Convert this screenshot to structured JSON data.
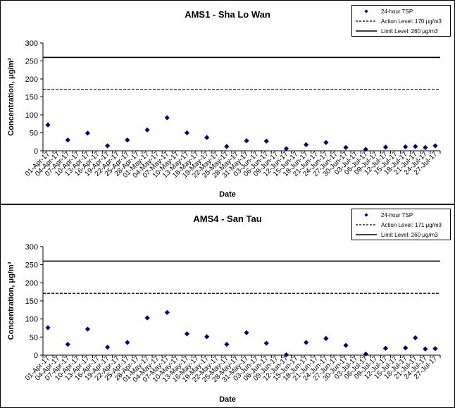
{
  "chart_data": [
    {
      "type": "scatter",
      "title": "AMS1 - Sha Lo Wan",
      "xlabel": "Date",
      "ylabel": "Concentration, μg/m³",
      "ylim": [
        0,
        300
      ],
      "yticks": [
        "0",
        "50",
        "100",
        "150",
        "200",
        "250",
        "300"
      ],
      "x": [
        "01-Apr-17",
        "04-Apr-17",
        "07-Apr-17",
        "10-Apr-17",
        "13-Apr-17",
        "16-Apr-17",
        "19-Apr-17",
        "22-Apr-17",
        "25-Apr-17",
        "28-Apr-17",
        "01-May-17",
        "04-May-17",
        "07-May-17",
        "10-May-17",
        "13-May-17",
        "16-May-17",
        "19-May-17",
        "22-May-17",
        "25-May-17",
        "28-May-17",
        "31-May-17",
        "03-Jun-17",
        "06-Jun-17",
        "09-Jun-17",
        "12-Jun-17",
        "15-Jun-17",
        "18-Jun-17",
        "21-Jun-17",
        "24-Jun-17",
        "27-Jun-17",
        "30-Jun-17",
        "03-Jul-17",
        "06-Jul-17",
        "09-Jul-17",
        "12-Jul-17",
        "15-Jul-17",
        "18-Jul-17",
        "21-Jul-17",
        "24-Jul-17",
        "27-Jul-17"
      ],
      "grid": false,
      "legend_position": "top-right",
      "legend": [
        "24-hour TSP",
        "Action Level: 170 μg/m3",
        "Limit Level: 260 μg/m3"
      ],
      "action_level": 170,
      "limit_level": 260,
      "series": [
        {
          "name": "24-hour TSP",
          "color": "#00007f",
          "points": [
            {
              "x": "01-Apr-17",
              "y": 72
            },
            {
              "x": "07-Apr-17",
              "y": 30
            },
            {
              "x": "13-Apr-17",
              "y": 49
            },
            {
              "x": "19-Apr-17",
              "y": 14
            },
            {
              "x": "25-Apr-17",
              "y": 30
            },
            {
              "x": "01-May-17",
              "y": 58
            },
            {
              "x": "07-May-17",
              "y": 92
            },
            {
              "x": "13-May-17",
              "y": 50
            },
            {
              "x": "19-May-17",
              "y": 37
            },
            {
              "x": "25-May-17",
              "y": 12
            },
            {
              "x": "31-May-17",
              "y": 28
            },
            {
              "x": "06-Jun-17",
              "y": 27
            },
            {
              "x": "12-Jun-17",
              "y": 6
            },
            {
              "x": "18-Jun-17",
              "y": 17
            },
            {
              "x": "24-Jun-17",
              "y": 23
            },
            {
              "x": "30-Jun-17",
              "y": 9
            },
            {
              "x": "06-Jul-17",
              "y": 4
            },
            {
              "x": "12-Jul-17",
              "y": 10
            },
            {
              "x": "18-Jul-17",
              "y": 11
            },
            {
              "x": "21-Jul-17",
              "y": 12
            },
            {
              "x": "24-Jul-17",
              "y": 9
            },
            {
              "x": "27-Jul-17",
              "y": 14
            }
          ]
        }
      ]
    },
    {
      "type": "scatter",
      "title": "AMS4 - San Tau",
      "xlabel": "Date",
      "ylabel": "Concentration, μg/m³",
      "ylim": [
        0,
        300
      ],
      "yticks": [
        "0",
        "50",
        "100",
        "150",
        "200",
        "250",
        "300"
      ],
      "x": [
        "01-Apr-17",
        "04-Apr-17",
        "07-Apr-17",
        "10-Apr-17",
        "13-Apr-17",
        "16-Apr-17",
        "19-Apr-17",
        "22-Apr-17",
        "25-Apr-17",
        "28-Apr-17",
        "01-May-17",
        "04-May-17",
        "07-May-17",
        "10-May-17",
        "13-May-17",
        "16-May-17",
        "19-May-17",
        "22-May-17",
        "25-May-17",
        "28-May-17",
        "31-May-17",
        "03-Jun-17",
        "06-Jun-17",
        "09-Jun-17",
        "12-Jun-17",
        "15-Jun-17",
        "18-Jun-17",
        "21-Jun-17",
        "24-Jun-17",
        "27-Jun-17",
        "30-Jun-17",
        "03-Jul-17",
        "06-Jul-17",
        "09-Jul-17",
        "12-Jul-17",
        "15-Jul-17",
        "18-Jul-17",
        "21-Jul-17",
        "24-Jul-17",
        "27-Jul-17"
      ],
      "grid": false,
      "legend_position": "top-right",
      "legend": [
        "24-hour TSP",
        "Action Level: 171 μg/m3",
        "Limit Level: 260 μg/m3"
      ],
      "action_level": 171,
      "limit_level": 260,
      "series": [
        {
          "name": "24-hour TSP",
          "color": "#00007f",
          "points": [
            {
              "x": "01-Apr-17",
              "y": 76
            },
            {
              "x": "07-Apr-17",
              "y": 30
            },
            {
              "x": "13-Apr-17",
              "y": 72
            },
            {
              "x": "19-Apr-17",
              "y": 22
            },
            {
              "x": "25-Apr-17",
              "y": 35
            },
            {
              "x": "01-May-17",
              "y": 103
            },
            {
              "x": "07-May-17",
              "y": 118
            },
            {
              "x": "13-May-17",
              "y": 59
            },
            {
              "x": "19-May-17",
              "y": 51
            },
            {
              "x": "25-May-17",
              "y": 30
            },
            {
              "x": "31-May-17",
              "y": 62
            },
            {
              "x": "06-Jun-17",
              "y": 33
            },
            {
              "x": "12-Jun-17",
              "y": 1
            },
            {
              "x": "18-Jun-17",
              "y": 35
            },
            {
              "x": "24-Jun-17",
              "y": 46
            },
            {
              "x": "30-Jun-17",
              "y": 27
            },
            {
              "x": "06-Jul-17",
              "y": 3
            },
            {
              "x": "12-Jul-17",
              "y": 19
            },
            {
              "x": "18-Jul-17",
              "y": 20
            },
            {
              "x": "21-Jul-17",
              "y": 48
            },
            {
              "x": "24-Jul-17",
              "y": 17
            },
            {
              "x": "27-Jul-17",
              "y": 18
            }
          ]
        }
      ]
    }
  ]
}
